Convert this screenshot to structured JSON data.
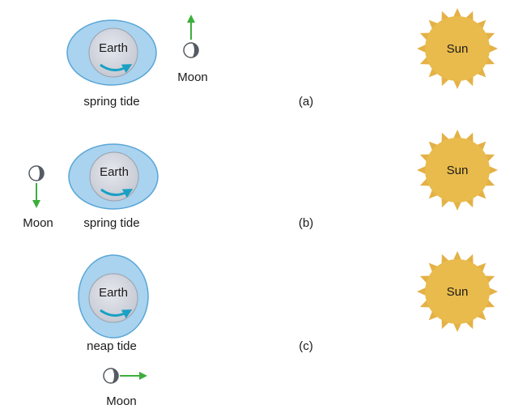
{
  "panels": [
    {
      "id": "a",
      "panel_label": "(a)",
      "tide_label": "spring tide",
      "earth_label": "Earth",
      "moon_label": "Moon",
      "sun_label": "Sun",
      "bulge": "horizontal",
      "moon_position": "right of Earth",
      "moon_motion": "up"
    },
    {
      "id": "b",
      "panel_label": "(b)",
      "tide_label": "spring tide",
      "earth_label": "Earth",
      "moon_label": "Moon",
      "sun_label": "Sun",
      "bulge": "horizontal",
      "moon_position": "left of Earth",
      "moon_motion": "down"
    },
    {
      "id": "c",
      "panel_label": "(c)",
      "tide_label": "neap tide",
      "earth_label": "Earth",
      "moon_label": "Moon",
      "sun_label": "Sun",
      "bulge": "vertical",
      "moon_position": "below Earth",
      "moon_motion": "right"
    }
  ],
  "colors": {
    "ocean": "#a9d3ef",
    "ocean_edge": "#5aa6d6",
    "earth": "#d5d8e0",
    "rotation_arrow": "#1aa0c4",
    "motion_arrow": "#3cae3c",
    "sun": "#e9bb4c",
    "sun_rays": "#e4b146",
    "moon_light": "#ffffff",
    "moon_dark": "#555b62"
  }
}
